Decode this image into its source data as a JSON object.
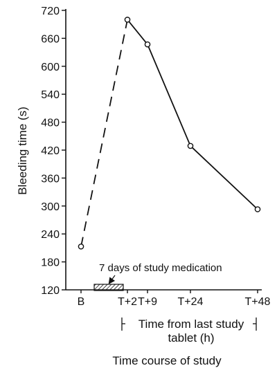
{
  "chart_data": {
    "type": "line",
    "title": "",
    "ylabel": "Bleeding time (s)",
    "xlabel": "Time course of study",
    "x_sublabel_line1": "Time from last study",
    "x_sublabel_line2": "tablet (h)",
    "ylim": [
      120,
      720
    ],
    "yticks": [
      120,
      180,
      240,
      300,
      360,
      420,
      480,
      540,
      600,
      660,
      720
    ],
    "categories": [
      "B",
      "T+2",
      "T+9",
      "T+24",
      "T+48"
    ],
    "points": [
      {
        "x": "B",
        "y": 213
      },
      {
        "x": "T+2",
        "y": 700
      },
      {
        "x": "T+9",
        "y": 647
      },
      {
        "x": "T+24",
        "y": 429
      },
      {
        "x": "T+48",
        "y": 293
      }
    ],
    "dashed_segment": [
      "B",
      "T+2"
    ],
    "medication_annotation": "7 days of study medication",
    "grid": false,
    "legend": "none"
  }
}
